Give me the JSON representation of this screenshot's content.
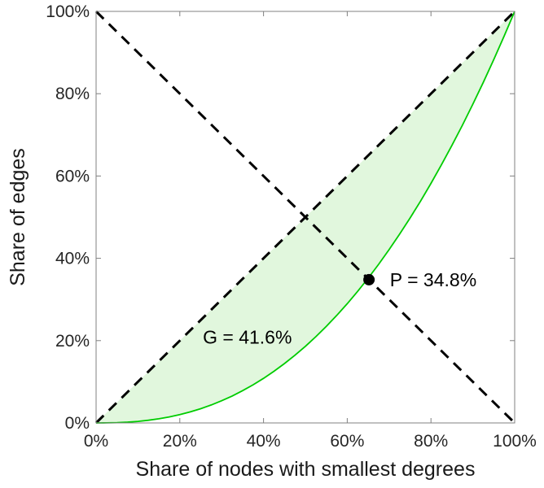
{
  "chart_data": {
    "type": "line",
    "title": "",
    "xlabel": "Share of nodes with smallest degrees",
    "ylabel": "Share of edges",
    "xlim": [
      0,
      100
    ],
    "ylim": [
      0,
      100
    ],
    "xticks": [
      0,
      20,
      40,
      60,
      80,
      100
    ],
    "yticks": [
      0,
      20,
      40,
      60,
      80,
      100
    ],
    "tick_suffix": "%",
    "grid": false,
    "legend": false,
    "axis_box_color": "#808080",
    "text_color": "#262626",
    "series": [
      {
        "name": "lorenz-curve",
        "style": "solid",
        "color": "#00cc00",
        "width": 1.8,
        "x": [
          0,
          2.5,
          5,
          7.5,
          10,
          12.5,
          15,
          17.5,
          20,
          22.5,
          25,
          27.5,
          30,
          32.5,
          35,
          37.5,
          40,
          42.5,
          45,
          47.5,
          50,
          52.5,
          55,
          57.5,
          60,
          62.5,
          65,
          67.5,
          70,
          72.5,
          75,
          77.5,
          80,
          82.5,
          85,
          87.5,
          90,
          92.5,
          95,
          97.5,
          100
        ],
        "y": [
          0,
          0.01,
          0.07,
          0.19,
          0.37,
          0.65,
          1.0,
          1.46,
          2.02,
          2.68,
          3.46,
          4.37,
          5.39,
          6.55,
          7.84,
          9.27,
          10.83,
          12.55,
          14.43,
          16.44,
          18.62,
          20.96,
          23.46,
          26.13,
          28.98,
          31.99,
          35.18,
          38.56,
          42.11,
          45.84,
          49.78,
          53.89,
          58.21,
          62.71,
          67.43,
          72.34,
          77.45,
          82.77,
          88.3,
          94.04,
          100
        ]
      },
      {
        "name": "equality-diagonal",
        "style": "dashed",
        "color": "#000000",
        "width": 3,
        "x": [
          0,
          100
        ],
        "y": [
          0,
          100
        ]
      },
      {
        "name": "anti-diagonal",
        "style": "dashed",
        "color": "#000000",
        "width": 3,
        "x": [
          0,
          100
        ],
        "y": [
          100,
          0
        ]
      }
    ],
    "fill_between": {
      "upper": "equality-diagonal",
      "lower": "lorenz-curve",
      "color": "#e1f7dd"
    },
    "point": {
      "x": 65.2,
      "y": 34.8,
      "radius": 7,
      "color": "#000000"
    },
    "annotations": [
      {
        "text": "G = 41.6%",
        "x": 25.5,
        "y": 19.3,
        "anchor": "start"
      },
      {
        "text": "P = 34.8%",
        "x": 70.2,
        "y": 33.2,
        "anchor": "start"
      }
    ]
  }
}
